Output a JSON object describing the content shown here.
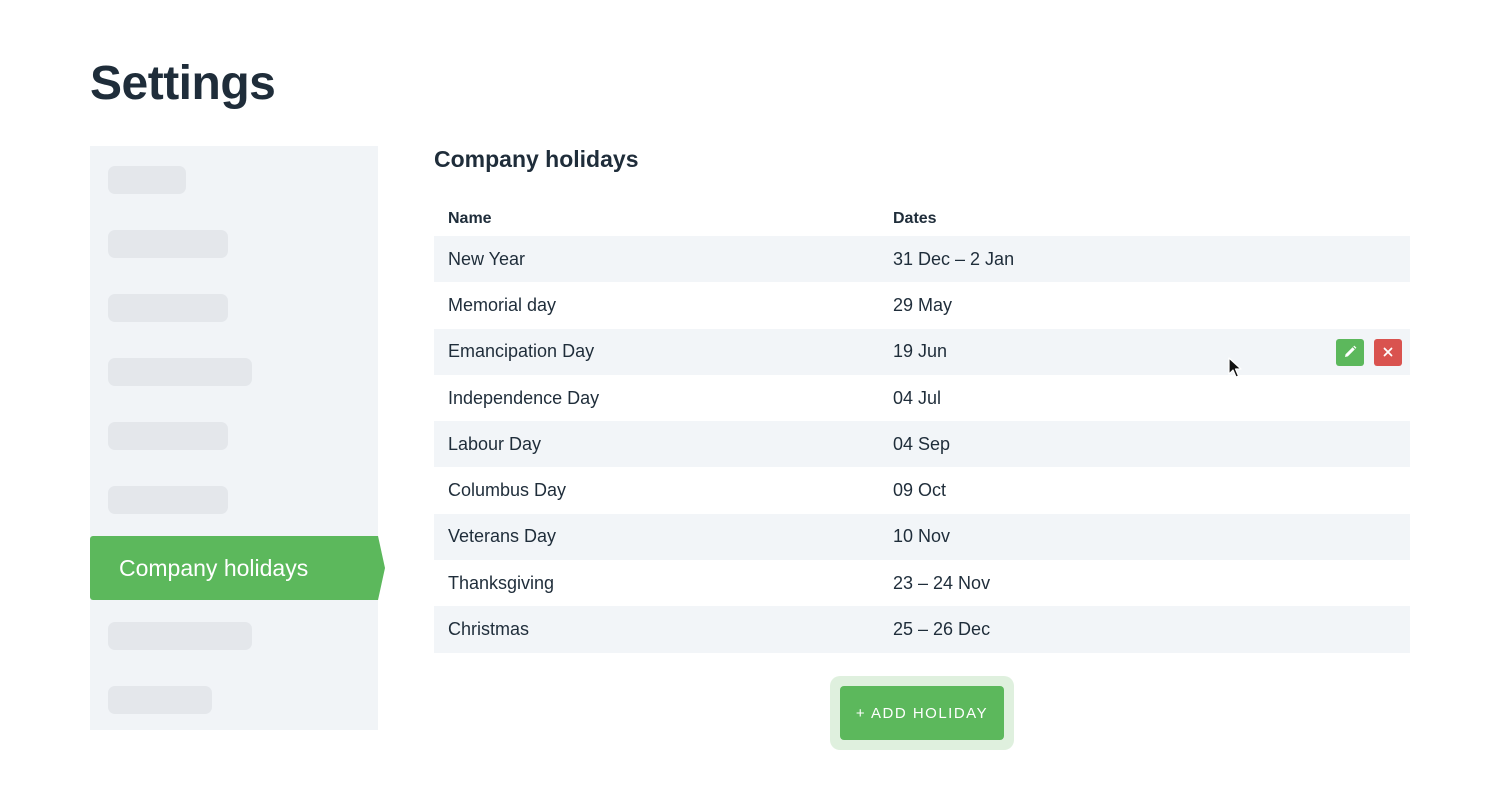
{
  "page": {
    "title": "Settings"
  },
  "sidebar": {
    "active_item_label": "Company holidays"
  },
  "section": {
    "title": "Company holidays"
  },
  "table": {
    "columns": [
      "Name",
      "Dates"
    ],
    "rows": [
      {
        "name": "New Year",
        "dates": "31 Dec – 2 Jan"
      },
      {
        "name": "Memorial day",
        "dates": "29 May"
      },
      {
        "name": "Emancipation Day",
        "dates": "19 Jun"
      },
      {
        "name": "Independence Day",
        "dates": "04 Jul"
      },
      {
        "name": "Labour Day",
        "dates": "04 Sep"
      },
      {
        "name": "Columbus Day",
        "dates": "09 Oct"
      },
      {
        "name": "Veterans Day",
        "dates": "10 Nov"
      },
      {
        "name": "Thanksgiving",
        "dates": "23 – 24 Nov"
      },
      {
        "name": "Christmas",
        "dates": "25 – 26 Dec"
      }
    ]
  },
  "actions": {
    "add_label": "+ ADD HOLIDAY"
  },
  "colors": {
    "accent": "#5cb85c",
    "danger": "#d9534f",
    "text": "#1f2d3a",
    "row_stripe": "#f2f5f8"
  },
  "icons": {
    "edit": "pencil-icon",
    "delete": "close-icon"
  }
}
